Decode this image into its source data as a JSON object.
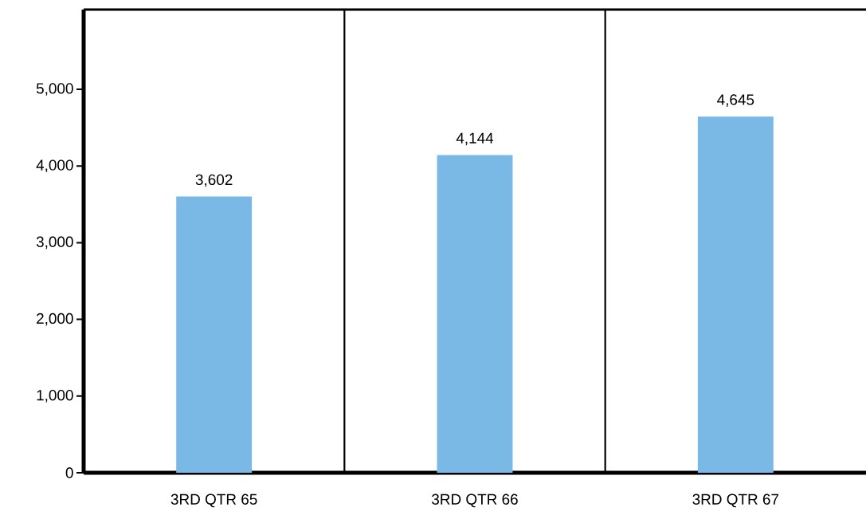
{
  "chart_data": {
    "type": "bar",
    "categories": [
      "3RD QTR 65",
      "3RD QTR 66",
      "3RD QTR 67"
    ],
    "values": [
      3602,
      4144,
      4645
    ],
    "color": "#7ab8e6",
    "ylim": [
      0,
      6040
    ],
    "yticks": [
      {
        "value": 0,
        "label": "0"
      },
      {
        "value": 1000,
        "label": "1,000"
      },
      {
        "value": 2000,
        "label": "2,000"
      },
      {
        "value": 3000,
        "label": "3,000"
      },
      {
        "value": 4000,
        "label": "4,000"
      },
      {
        "value": 5000,
        "label": "5,000"
      }
    ],
    "grid": "x",
    "value_labels": [
      "3,602",
      "4,144",
      "4,645"
    ]
  }
}
